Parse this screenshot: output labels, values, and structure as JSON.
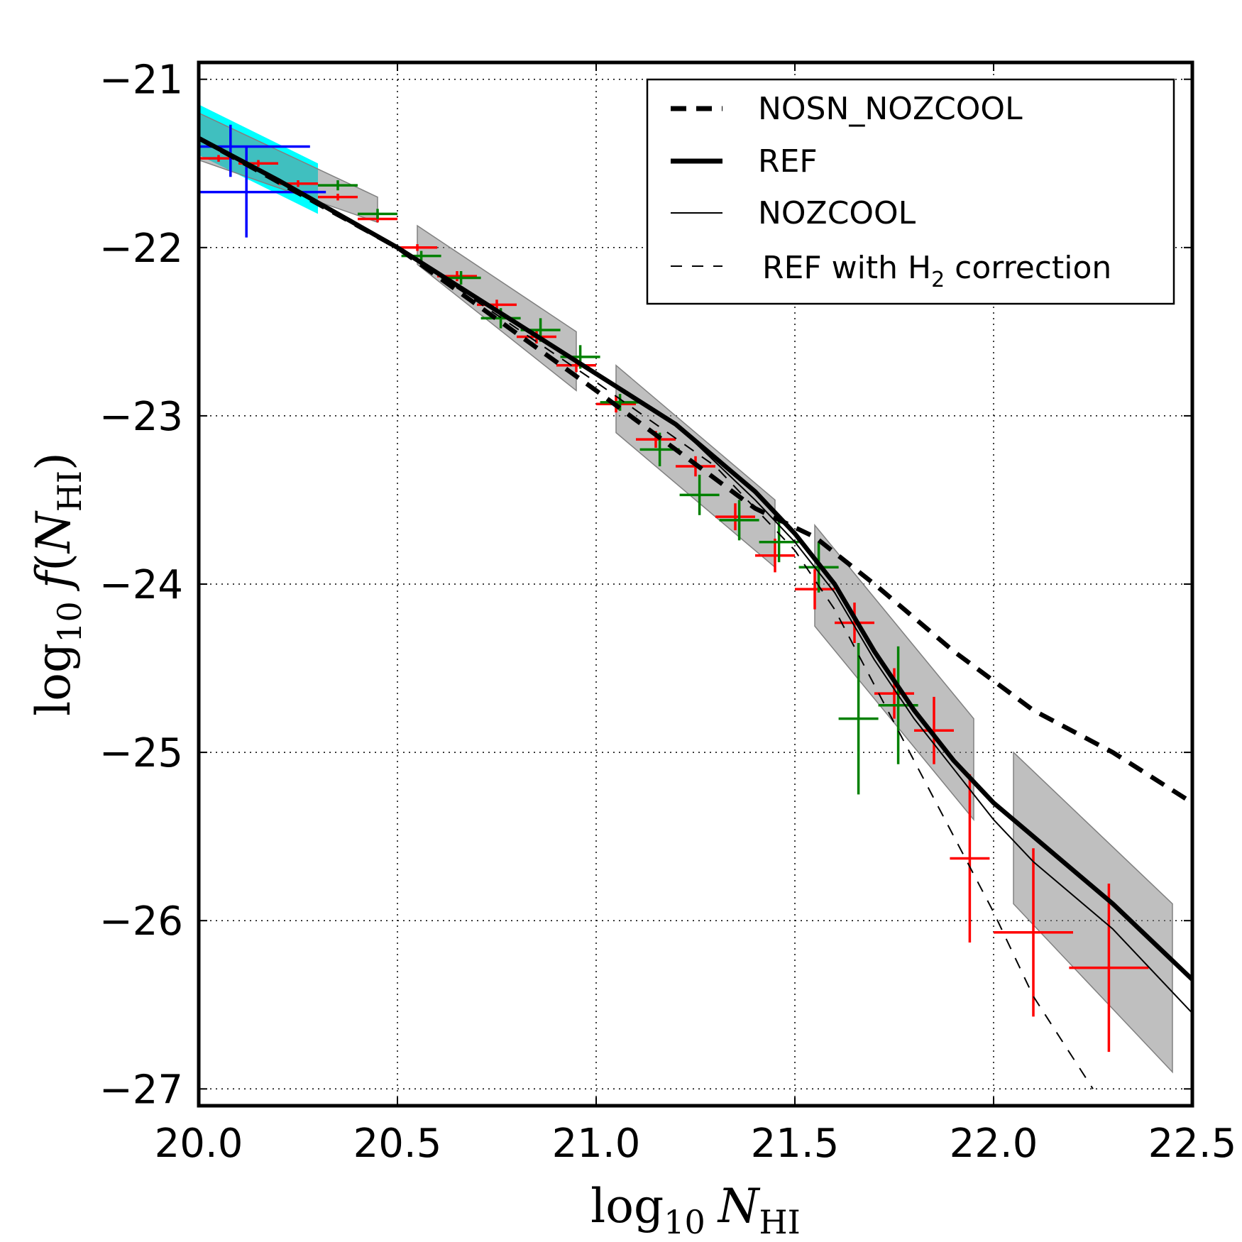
{
  "chart_data": {
    "type": "line",
    "title": "",
    "xlabel": {
      "base": "log",
      "sub": "10",
      "var": "N",
      "varsub": "HI"
    },
    "ylabel": {
      "base": "log",
      "sub": "10",
      "fn": "f",
      "var": "N",
      "varsub": "HI"
    },
    "xlim": [
      20.0,
      22.5
    ],
    "ylim": [
      -27.1,
      -20.9
    ],
    "x_ticks": [
      "20.0",
      "20.5",
      "21.0",
      "21.5",
      "22.0",
      "22.5"
    ],
    "x_tick_values": [
      20.0,
      20.5,
      21.0,
      21.5,
      22.0,
      22.5
    ],
    "y_ticks": [
      "−21",
      "−22",
      "−23",
      "−24",
      "−25",
      "−26",
      "−27"
    ],
    "y_tick_values": [
      -21,
      -22,
      -23,
      -24,
      -25,
      -26,
      -27
    ],
    "grid": true,
    "legend_position": "top-right",
    "legend": [
      {
        "label": "NOSN_NOZCOOL",
        "style": "thick-dashed"
      },
      {
        "label": "REF",
        "style": "thick-solid"
      },
      {
        "label": "NOZCOOL",
        "style": "thin-solid"
      },
      {
        "label": "REF with H",
        "sub": "2",
        "label_after": " correction",
        "style": "thin-dashed"
      }
    ],
    "series": [
      {
        "name": "NOSN_NOZCOOL",
        "style": "thick-dashed",
        "x": [
          20.0,
          20.5,
          21.0,
          21.2,
          21.4,
          21.55,
          21.7,
          21.9,
          22.1,
          22.3,
          22.5
        ],
        "y": [
          -21.35,
          -22.0,
          -22.85,
          -23.2,
          -23.55,
          -23.72,
          -24.0,
          -24.4,
          -24.75,
          -25.0,
          -25.3
        ]
      },
      {
        "name": "REF",
        "style": "thick-solid",
        "x": [
          20.0,
          20.2,
          20.5,
          20.7,
          21.0,
          21.2,
          21.4,
          21.5,
          21.6,
          21.7,
          21.8,
          21.9,
          22.0,
          22.1,
          22.3,
          22.5
        ],
        "y": [
          -21.35,
          -21.6,
          -22.0,
          -22.3,
          -22.75,
          -23.05,
          -23.45,
          -23.7,
          -24.0,
          -24.4,
          -24.75,
          -25.05,
          -25.3,
          -25.5,
          -25.9,
          -26.35
        ]
      },
      {
        "name": "NOZCOOL",
        "style": "thin-solid",
        "x": [
          20.0,
          20.2,
          20.5,
          20.7,
          21.0,
          21.2,
          21.4,
          21.5,
          21.6,
          21.7,
          21.8,
          21.9,
          22.0,
          22.1,
          22.3,
          22.5
        ],
        "y": [
          -21.35,
          -21.6,
          -22.0,
          -22.3,
          -22.75,
          -23.05,
          -23.5,
          -23.75,
          -24.05,
          -24.45,
          -24.8,
          -25.1,
          -25.4,
          -25.65,
          -26.05,
          -26.55
        ]
      },
      {
        "name": "REF with H2 correction",
        "style": "thin-dashed",
        "x": [
          20.0,
          20.5,
          21.0,
          21.3,
          21.5,
          21.6,
          21.7,
          21.8,
          21.9,
          22.0,
          22.1,
          22.25
        ],
        "y": [
          -21.35,
          -22.0,
          -22.8,
          -23.3,
          -23.8,
          -24.15,
          -24.6,
          -25.05,
          -25.5,
          -25.95,
          -26.45,
          -27.0
        ]
      }
    ],
    "bands": [
      {
        "name": "cyan-band",
        "color": "#00ffff",
        "x": [
          20.0,
          20.3
        ],
        "upper": [
          -21.15,
          -21.5
        ],
        "lower": [
          -21.45,
          -21.8
        ]
      },
      {
        "name": "gray-band-1",
        "color": "#808080",
        "x": [
          20.0,
          20.45
        ],
        "upper": [
          -21.2,
          -21.7
        ],
        "lower": [
          -21.48,
          -21.85
        ]
      },
      {
        "name": "gray-band-2",
        "color": "#808080",
        "x": [
          20.55,
          20.95
        ],
        "upper": [
          -21.87,
          -22.5
        ],
        "lower": [
          -22.1,
          -22.85
        ]
      },
      {
        "name": "gray-band-3",
        "color": "#808080",
        "x": [
          21.05,
          21.45
        ],
        "upper": [
          -22.7,
          -23.5
        ],
        "lower": [
          -23.1,
          -23.9
        ]
      },
      {
        "name": "gray-band-4",
        "color": "#808080",
        "x": [
          21.55,
          21.95
        ],
        "upper": [
          -23.65,
          -24.8
        ],
        "lower": [
          -24.25,
          -25.4
        ]
      },
      {
        "name": "gray-band-5",
        "color": "#808080",
        "x": [
          22.05,
          22.45
        ],
        "upper": [
          -25.0,
          -25.9
        ],
        "lower": [
          -25.9,
          -26.9
        ]
      }
    ],
    "error_points": [
      {
        "color": "#ff0000",
        "x": 20.05,
        "y": -21.47,
        "xerr": 0.05,
        "yerr_up": 0.02,
        "yerr_down": 0.02
      },
      {
        "color": "#ff0000",
        "x": 20.15,
        "y": -21.5,
        "xerr": 0.05,
        "yerr_up": 0.02,
        "yerr_down": 0.02
      },
      {
        "color": "#ff0000",
        "x": 20.25,
        "y": -21.62,
        "xerr": 0.05,
        "yerr_up": 0.02,
        "yerr_down": 0.02
      },
      {
        "color": "#ff0000",
        "x": 20.35,
        "y": -21.7,
        "xerr": 0.05,
        "yerr_up": 0.02,
        "yerr_down": 0.02
      },
      {
        "color": "#ff0000",
        "x": 20.45,
        "y": -21.83,
        "xerr": 0.05,
        "yerr_up": 0.02,
        "yerr_down": 0.02
      },
      {
        "color": "#ff0000",
        "x": 20.55,
        "y": -22.0,
        "xerr": 0.05,
        "yerr_up": 0.02,
        "yerr_down": 0.02
      },
      {
        "color": "#ff0000",
        "x": 20.65,
        "y": -22.17,
        "xerr": 0.05,
        "yerr_up": 0.03,
        "yerr_down": 0.03
      },
      {
        "color": "#ff0000",
        "x": 20.75,
        "y": -22.34,
        "xerr": 0.05,
        "yerr_up": 0.03,
        "yerr_down": 0.03
      },
      {
        "color": "#ff0000",
        "x": 20.85,
        "y": -22.53,
        "xerr": 0.05,
        "yerr_up": 0.04,
        "yerr_down": 0.04
      },
      {
        "color": "#ff0000",
        "x": 20.95,
        "y": -22.7,
        "xerr": 0.05,
        "yerr_up": 0.04,
        "yerr_down": 0.04
      },
      {
        "color": "#ff0000",
        "x": 21.05,
        "y": -22.93,
        "xerr": 0.05,
        "yerr_up": 0.05,
        "yerr_down": 0.05
      },
      {
        "color": "#ff0000",
        "x": 21.15,
        "y": -23.14,
        "xerr": 0.05,
        "yerr_up": 0.05,
        "yerr_down": 0.05
      },
      {
        "color": "#ff0000",
        "x": 21.25,
        "y": -23.3,
        "xerr": 0.05,
        "yerr_up": 0.06,
        "yerr_down": 0.06
      },
      {
        "color": "#ff0000",
        "x": 21.35,
        "y": -23.6,
        "xerr": 0.05,
        "yerr_up": 0.08,
        "yerr_down": 0.08
      },
      {
        "color": "#ff0000",
        "x": 21.45,
        "y": -23.83,
        "xerr": 0.05,
        "yerr_up": 0.1,
        "yerr_down": 0.1
      },
      {
        "color": "#ff0000",
        "x": 21.55,
        "y": -24.03,
        "xerr": 0.05,
        "yerr_up": 0.12,
        "yerr_down": 0.12
      },
      {
        "color": "#ff0000",
        "x": 21.65,
        "y": -24.23,
        "xerr": 0.05,
        "yerr_up": 0.12,
        "yerr_down": 0.12
      },
      {
        "color": "#ff0000",
        "x": 21.75,
        "y": -24.65,
        "xerr": 0.05,
        "yerr_up": 0.15,
        "yerr_down": 0.15
      },
      {
        "color": "#ff0000",
        "x": 21.85,
        "y": -24.87,
        "xerr": 0.05,
        "yerr_up": 0.2,
        "yerr_down": 0.2
      },
      {
        "color": "#ff0000",
        "x": 21.94,
        "y": -25.63,
        "xerr": 0.05,
        "yerr_up": 0.5,
        "yerr_down": 0.5
      },
      {
        "color": "#ff0000",
        "x": 22.1,
        "y": -26.07,
        "xerr": 0.1,
        "yerr_up": 0.5,
        "yerr_down": 0.5
      },
      {
        "color": "#ff0000",
        "x": 22.29,
        "y": -26.28,
        "xerr": 0.1,
        "yerr_up": 0.5,
        "yerr_down": 0.5
      },
      {
        "color": "#008000",
        "x": 20.35,
        "y": -21.63,
        "xerr": 0.05,
        "yerr_up": 0.03,
        "yerr_down": 0.03
      },
      {
        "color": "#008000",
        "x": 20.45,
        "y": -21.8,
        "xerr": 0.05,
        "yerr_up": 0.03,
        "yerr_down": 0.03
      },
      {
        "color": "#008000",
        "x": 20.56,
        "y": -22.05,
        "xerr": 0.05,
        "yerr_up": 0.03,
        "yerr_down": 0.03
      },
      {
        "color": "#008000",
        "x": 20.66,
        "y": -22.18,
        "xerr": 0.05,
        "yerr_up": 0.04,
        "yerr_down": 0.04
      },
      {
        "color": "#008000",
        "x": 20.76,
        "y": -22.42,
        "xerr": 0.05,
        "yerr_up": 0.06,
        "yerr_down": 0.06
      },
      {
        "color": "#008000",
        "x": 20.86,
        "y": -22.49,
        "xerr": 0.05,
        "yerr_up": 0.07,
        "yerr_down": 0.07
      },
      {
        "color": "#008000",
        "x": 20.96,
        "y": -22.65,
        "xerr": 0.05,
        "yerr_up": 0.07,
        "yerr_down": 0.07
      },
      {
        "color": "#008000",
        "x": 21.06,
        "y": -22.92,
        "xerr": 0.05,
        "yerr_up": 0.05,
        "yerr_down": 0.05
      },
      {
        "color": "#008000",
        "x": 21.16,
        "y": -23.2,
        "xerr": 0.05,
        "yerr_up": 0.1,
        "yerr_down": 0.1
      },
      {
        "color": "#008000",
        "x": 21.26,
        "y": -23.47,
        "xerr": 0.05,
        "yerr_up": 0.12,
        "yerr_down": 0.12
      },
      {
        "color": "#008000",
        "x": 21.36,
        "y": -23.62,
        "xerr": 0.05,
        "yerr_up": 0.12,
        "yerr_down": 0.12
      },
      {
        "color": "#008000",
        "x": 21.46,
        "y": -23.75,
        "xerr": 0.05,
        "yerr_up": 0.12,
        "yerr_down": 0.12
      },
      {
        "color": "#008000",
        "x": 21.56,
        "y": -23.9,
        "xerr": 0.05,
        "yerr_up": 0.15,
        "yerr_down": 0.15
      },
      {
        "color": "#008000",
        "x": 21.66,
        "y": -24.8,
        "xerr": 0.05,
        "yerr_up": 0.45,
        "yerr_down": 0.45
      },
      {
        "color": "#008000",
        "x": 21.76,
        "y": -24.72,
        "xerr": 0.05,
        "yerr_up": 0.35,
        "yerr_down": 0.35
      },
      {
        "color": "#0000ff",
        "x": 20.08,
        "y": -21.4,
        "xerr": 0.2,
        "yerr_up": 0.13,
        "yerr_down": 0.18
      },
      {
        "color": "#0000ff",
        "x": 20.12,
        "y": -21.67,
        "xerr": 0.2,
        "yerr_up": 0.27,
        "yerr_down": 0.27
      }
    ]
  }
}
